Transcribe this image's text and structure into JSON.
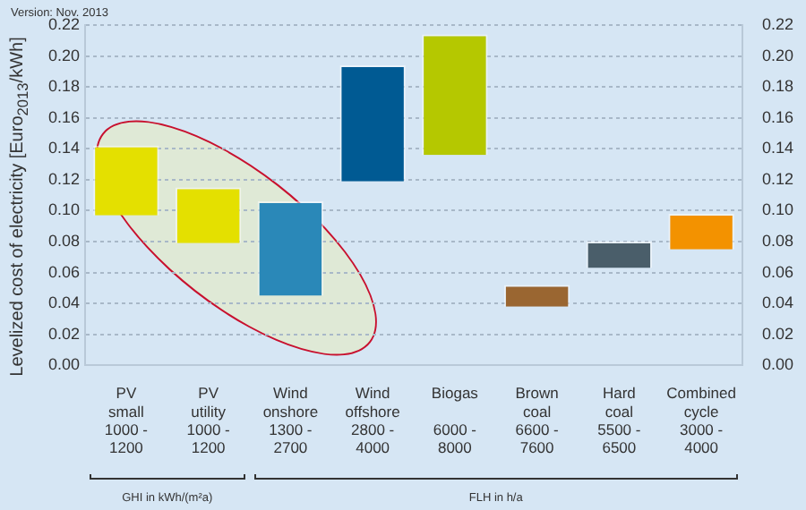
{
  "chart_data": {
    "type": "bar",
    "categories": [
      "PV\nsmall\n1000 -\n1200",
      "PV\nutility\n1000 -\n1200",
      "Wind\nonshore\n1300 -\n2700",
      "Wind\noffshore\n2800 -\n4000",
      "Biogas\n\n6000 -\n8000",
      "Brown\ncoal\n6600 -\n7600",
      "Hard\ncoal\n5500 -\n6500",
      "Combined\ncycle\n3000 -\n4000"
    ],
    "base": [
      0.097,
      0.079,
      0.045,
      0.119,
      0.136,
      0.038,
      0.063,
      0.075
    ],
    "values": [
      0.045,
      0.036,
      0.061,
      0.075,
      0.078,
      0.014,
      0.017,
      0.023
    ],
    "colors": [
      "#e4e000",
      "#e4e000",
      "#2a88b8",
      "#005a93",
      "#b5c800",
      "#9a6631",
      "#4a5e6a",
      "#f39200"
    ],
    "ylabel": "Levelized cost of electricity [Euro$_{2013}$/kWh]",
    "ylim": [
      0,
      0.22
    ],
    "yticks": [
      {
        "value": 0,
        "label": "0.00"
      },
      {
        "value": 0.02,
        "label": "0.02"
      },
      {
        "value": 0.04,
        "label": "0.04"
      },
      {
        "value": 0.06,
        "label": "0.06"
      },
      {
        "value": 0.08,
        "label": "0.08"
      },
      {
        "value": 0.1,
        "label": "0.10"
      },
      {
        "value": 0.12,
        "label": "0.12"
      },
      {
        "value": 0.14,
        "label": "0.14"
      },
      {
        "value": 0.16,
        "label": "0.16"
      },
      {
        "value": 0.18,
        "label": "0.18"
      },
      {
        "value": 0.2,
        "label": "0.20"
      },
      {
        "value": 0.22,
        "label": "0.22"
      }
    ],
    "y2lim": [
      0,
      0.22
    ],
    "y2ticks": [
      {
        "value": 0,
        "label": "0.00"
      },
      {
        "value": 0.02,
        "label": "0.02"
      },
      {
        "value": 0.04,
        "label": "0.04"
      },
      {
        "value": 0.06,
        "label": "0.06"
      },
      {
        "value": 0.08,
        "label": "0.08"
      },
      {
        "value": 0.1,
        "label": "0.10"
      },
      {
        "value": 0.12,
        "label": "0.12"
      },
      {
        "value": 0.14,
        "label": "0.14"
      },
      {
        "value": 0.16,
        "label": "0.16"
      },
      {
        "value": 0.18,
        "label": "0.18"
      },
      {
        "value": 0.2,
        "label": "0.20"
      },
      {
        "value": 0.22,
        "label": "0.22"
      }
    ],
    "grid": "y",
    "legend": false,
    "annotations": [
      "Version: Nov. 2013",
      "GHI in kWh/(m²a)",
      "FLH in h/a"
    ]
  }
}
